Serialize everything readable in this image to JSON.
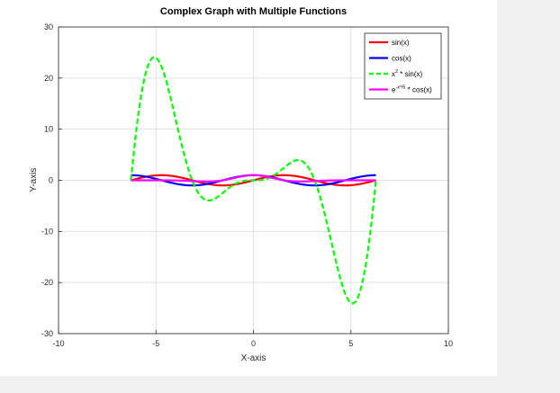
{
  "chart_data": {
    "type": "line",
    "title": "Complex Graph with Multiple Functions",
    "xlabel": "X-axis",
    "ylabel": "Y-axis",
    "xlim": [
      -10,
      10
    ],
    "ylim": [
      -30,
      30
    ],
    "xticks": [
      -10,
      -5,
      0,
      5,
      10
    ],
    "yticks": [
      -30,
      -20,
      -10,
      0,
      10,
      20,
      30
    ],
    "grid": true,
    "legend_position": "top-right",
    "x_domain": [
      -6.2832,
      6.2832
    ],
    "series": [
      {
        "name": "sin(x)",
        "expression": "sin(x)",
        "color": "#ff0000",
        "dash": "solid",
        "x": [
          -6.28,
          -5.5,
          -5,
          -4.5,
          -4,
          -3.5,
          -3,
          -2.5,
          -2,
          -1.5,
          -1,
          -0.5,
          0,
          0.5,
          1,
          1.5,
          2,
          2.5,
          3,
          3.5,
          4,
          4.5,
          5,
          5.5,
          6.28
        ],
        "y": [
          0,
          0.71,
          0.96,
          0.98,
          0.76,
          0.35,
          -0.14,
          -0.6,
          -0.91,
          -1,
          -0.84,
          -0.48,
          0,
          0.48,
          0.84,
          1,
          0.91,
          0.6,
          0.14,
          -0.35,
          -0.76,
          -0.98,
          -0.96,
          -0.71,
          0
        ]
      },
      {
        "name": "cos(x)",
        "expression": "cos(x)",
        "color": "#0000ff",
        "dash": "solid",
        "x": [
          -6.28,
          -5.5,
          -5,
          -4.5,
          -4,
          -3.5,
          -3,
          -2.5,
          -2,
          -1.5,
          -1,
          -0.5,
          0,
          0.5,
          1,
          1.5,
          2,
          2.5,
          3,
          3.5,
          4,
          4.5,
          5,
          5.5,
          6.28
        ],
        "y": [
          1,
          0.71,
          0.28,
          -0.21,
          -0.65,
          -0.94,
          -0.99,
          -0.8,
          -0.42,
          0.07,
          0.54,
          0.88,
          1,
          0.88,
          0.54,
          0.07,
          -0.42,
          -0.8,
          -0.99,
          -0.94,
          -0.65,
          -0.21,
          0.28,
          0.71,
          1
        ]
      },
      {
        "name": "x² * sin(x)",
        "name_parts": [
          "x",
          "2",
          " * sin(x)"
        ],
        "expression": "x*x*sin(x)",
        "color": "#00ff00",
        "dash": "dashed",
        "x": [
          -6.28,
          -6,
          -5.5,
          -5,
          -4.5,
          -4,
          -3.5,
          -3,
          -2.5,
          -2,
          -1.5,
          -1,
          0,
          1,
          1.5,
          2,
          2.5,
          3,
          3.5,
          4,
          4.5,
          5,
          5.5,
          6,
          6.28
        ],
        "y": [
          0,
          10.06,
          21.34,
          23.97,
          19.8,
          12.11,
          4.3,
          -1.27,
          -3.74,
          -3.64,
          -2.24,
          -0.84,
          0,
          0.84,
          2.24,
          3.64,
          3.74,
          1.27,
          -4.3,
          -12.11,
          -19.8,
          -23.97,
          -21.34,
          -10.06,
          0
        ]
      },
      {
        "name": "e^(-x²/5) * cos(x)",
        "name_parts": [
          "e",
          "-x²/5",
          " * cos(x)"
        ],
        "expression": "exp(-x*x/5)*cos(x)",
        "color": "#ff00ff",
        "dash": "solid",
        "x": [
          -6.28,
          -5,
          -4,
          -3,
          -2,
          -1.5,
          -1,
          -0.5,
          0,
          0.5,
          1,
          1.5,
          2,
          3,
          4,
          5,
          6.28
        ],
        "y": [
          0,
          0,
          -0.03,
          -0.16,
          -0.19,
          0.04,
          0.44,
          0.84,
          1,
          0.84,
          0.44,
          0.04,
          -0.19,
          -0.16,
          -0.03,
          0,
          0
        ]
      }
    ]
  }
}
